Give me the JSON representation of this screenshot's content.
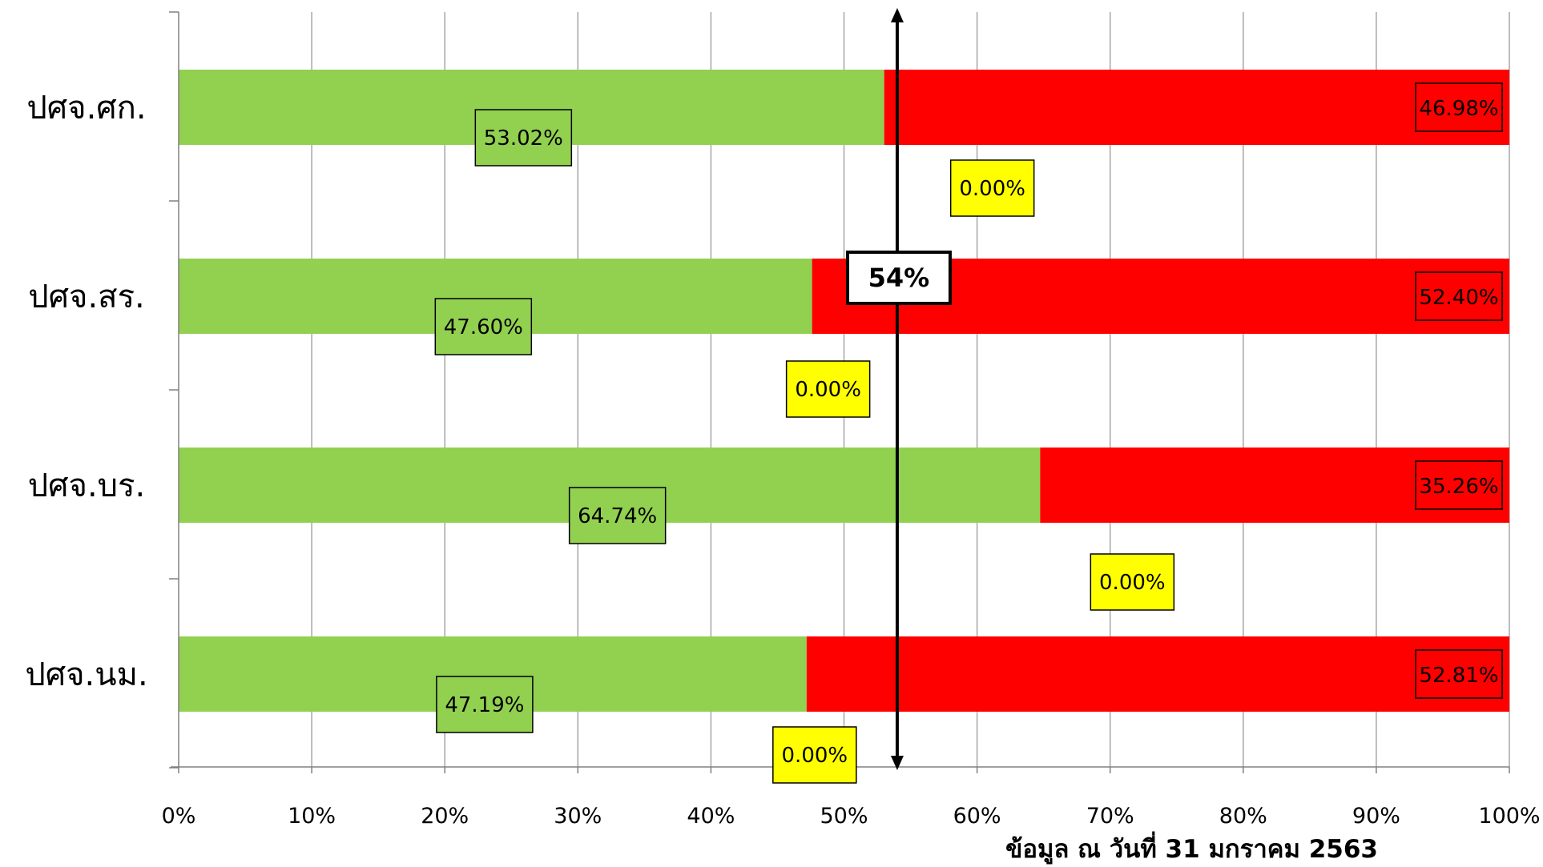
{
  "chart_data": {
    "type": "bar",
    "orientation": "horizontal",
    "stacked": "percent",
    "categories": [
      "ปศจ.ศก.",
      "ปศจ.สร.",
      "ปศจ.บร.",
      "ปศจ.นม."
    ],
    "series": [
      {
        "color": "#92d050",
        "values": [
          53.02,
          47.6,
          64.74,
          47.19
        ],
        "labels": [
          "53.02%",
          "47.60%",
          "64.74%",
          "47.19%"
        ]
      },
      {
        "color": "#ffff00",
        "values": [
          0.0,
          0.0,
          0.0,
          0.0
        ],
        "labels": [
          "0.00%",
          "0.00%",
          "0.00%",
          "0.00%"
        ]
      },
      {
        "color": "#ff0000",
        "values": [
          46.98,
          52.4,
          35.26,
          52.81
        ],
        "labels": [
          "46.98%",
          "52.40%",
          "35.26%",
          "52.81%"
        ]
      }
    ],
    "xlim": [
      0,
      100
    ],
    "x_ticks": [
      0,
      10,
      20,
      30,
      40,
      50,
      60,
      70,
      80,
      90,
      100
    ],
    "x_tick_labels": [
      "0%",
      "10%",
      "20%",
      "30%",
      "40%",
      "50%",
      "60%",
      "70%",
      "80%",
      "90%",
      "100%"
    ],
    "grid": "vertical",
    "legend": "none",
    "reference_line": {
      "value": 54,
      "label": "54%"
    },
    "footnote": "ข้อมูล ณ วันที่ 31 มกราคม 2563"
  }
}
